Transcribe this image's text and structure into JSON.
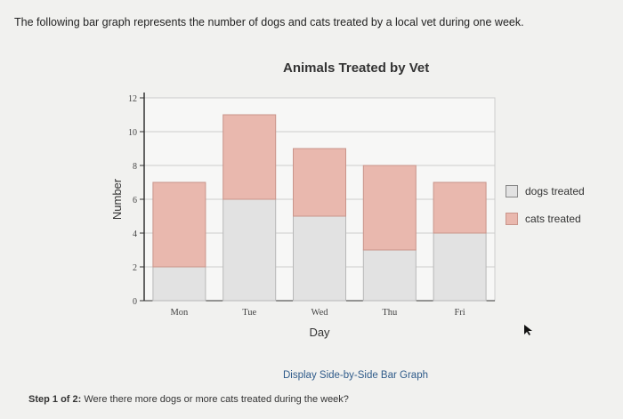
{
  "intro_text": "The following bar graph represents the number of dogs and cats treated by a local vet during one week.",
  "toggle_label": "Display Side-by-Side Bar Graph",
  "step": {
    "prefix": "Step 1 of 2:",
    "question": "Were there more dogs or more cats treated during the week?"
  },
  "colors": {
    "dogs": "#e2e2e2",
    "cats": "#e9b8ae",
    "cats_border": "#c9958b",
    "axis": "#333333",
    "grid": "#cccccc"
  },
  "chart_data": {
    "type": "bar",
    "stacked": true,
    "title": "Animals Treated by Vet",
    "xlabel": "Day",
    "ylabel": "Number",
    "ylim": [
      0,
      12
    ],
    "yticks": [
      0,
      2,
      4,
      6,
      8,
      10,
      12
    ],
    "categories": [
      "Mon",
      "Tue",
      "Wed",
      "Thu",
      "Fri"
    ],
    "series": [
      {
        "name": "dogs treated",
        "values": [
          2,
          6,
          5,
          3,
          4
        ]
      },
      {
        "name": "cats treated",
        "values": [
          5,
          5,
          4,
          5,
          3
        ]
      }
    ],
    "legend_position": "right",
    "grid": true
  }
}
